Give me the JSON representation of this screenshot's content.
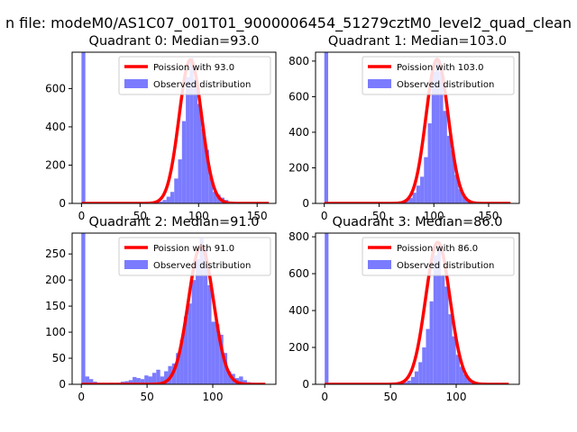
{
  "figure": {
    "suptitle": "n file: modeM0/AS1C07_001T01_9000006454_51279cztM0_level2_quad_clean"
  },
  "chart_data": [
    {
      "type": "bar",
      "title": "Quadrant 0: Median=93.0",
      "bin_width": 3.3,
      "xlim": [
        -8,
        166
      ],
      "ylim": [
        0,
        790
      ],
      "xticks": [
        0,
        50,
        100,
        150
      ],
      "yticks": [
        0,
        200,
        400,
        600
      ],
      "fit": {
        "label": "Poission with 93.0",
        "mean": 93.0,
        "peak": 750,
        "xrange": [
          0,
          160
        ],
        "color": "#ff0000"
      },
      "hist_label": "Observed distribution",
      "hist_color": "#7b7bff",
      "bins": [
        [
          0,
          790
        ],
        [
          56.1,
          3
        ],
        [
          59.4,
          4
        ],
        [
          62.7,
          6
        ],
        [
          66,
          10
        ],
        [
          69.3,
          18
        ],
        [
          72.6,
          35
        ],
        [
          75.9,
          60
        ],
        [
          79.2,
          130
        ],
        [
          82.5,
          230
        ],
        [
          85.8,
          430
        ],
        [
          89.1,
          660
        ],
        [
          92.4,
          760
        ],
        [
          95.7,
          650
        ],
        [
          99,
          520
        ],
        [
          102.3,
          390
        ],
        [
          105.6,
          280
        ],
        [
          108.9,
          140
        ],
        [
          112.2,
          60
        ],
        [
          115.5,
          45
        ],
        [
          118.8,
          30
        ],
        [
          122.1,
          18
        ],
        [
          125.4,
          10
        ],
        [
          128.7,
          6
        ],
        [
          132,
          3
        ],
        [
          138.6,
          2
        ],
        [
          145.2,
          1
        ]
      ]
    },
    {
      "type": "bar",
      "title": "Quadrant 1: Median=103.0",
      "bin_width": 3.5,
      "xlim": [
        -8,
        178
      ],
      "ylim": [
        0,
        850
      ],
      "xticks": [
        0,
        50,
        100,
        150
      ],
      "yticks": [
        0,
        200,
        400,
        600,
        800
      ],
      "fit": {
        "label": "Poission with 103.0",
        "mean": 103.0,
        "peak": 810,
        "xrange": [
          0,
          170
        ],
        "color": "#ff0000"
      },
      "hist_label": "Observed distribution",
      "hist_color": "#7b7bff",
      "bins": [
        [
          0,
          850
        ],
        [
          59.5,
          2
        ],
        [
          63,
          3
        ],
        [
          66.5,
          5
        ],
        [
          70,
          10
        ],
        [
          73.5,
          18
        ],
        [
          77,
          30
        ],
        [
          80.5,
          60
        ],
        [
          84,
          100
        ],
        [
          87.5,
          150
        ],
        [
          91,
          260
        ],
        [
          94.5,
          450
        ],
        [
          98,
          740
        ],
        [
          101.5,
          800
        ],
        [
          105,
          740
        ],
        [
          108.5,
          520
        ],
        [
          112,
          380
        ],
        [
          115.5,
          300
        ],
        [
          119,
          160
        ],
        [
          122.5,
          80
        ],
        [
          126,
          40
        ],
        [
          129.5,
          20
        ],
        [
          133,
          10
        ],
        [
          136.5,
          5
        ],
        [
          140,
          3
        ],
        [
          147,
          1
        ]
      ]
    },
    {
      "type": "bar",
      "title": "Quadrant 2: Median=91.0",
      "bin_width": 3.0,
      "xlim": [
        -7,
        148
      ],
      "ylim": [
        0,
        290
      ],
      "xticks": [
        0,
        50,
        100
      ],
      "yticks": [
        0,
        50,
        100,
        150,
        200,
        250
      ],
      "fit": {
        "label": "Poission with 91.0",
        "mean": 91.0,
        "peak": 265,
        "xrange": [
          0,
          140
        ],
        "color": "#ff0000"
      },
      "hist_label": "Observed distribution",
      "hist_color": "#7b7bff",
      "bins": [
        [
          0,
          290
        ],
        [
          3,
          15
        ],
        [
          6,
          10
        ],
        [
          9,
          5
        ],
        [
          12,
          3
        ],
        [
          15,
          2
        ],
        [
          18,
          2
        ],
        [
          21,
          3
        ],
        [
          24,
          2
        ],
        [
          27,
          3
        ],
        [
          30,
          5
        ],
        [
          33,
          6
        ],
        [
          36,
          8
        ],
        [
          39,
          14
        ],
        [
          42,
          12
        ],
        [
          45,
          10
        ],
        [
          48,
          17
        ],
        [
          51,
          15
        ],
        [
          54,
          22
        ],
        [
          57,
          28
        ],
        [
          60,
          15
        ],
        [
          63,
          25
        ],
        [
          66,
          35
        ],
        [
          69,
          40
        ],
        [
          72,
          60
        ],
        [
          75,
          85
        ],
        [
          78,
          130
        ],
        [
          81,
          155
        ],
        [
          84,
          200
        ],
        [
          87,
          240
        ],
        [
          90,
          280
        ],
        [
          93,
          260
        ],
        [
          96,
          190
        ],
        [
          99,
          120
        ],
        [
          102,
          115
        ],
        [
          105,
          95
        ],
        [
          108,
          60
        ],
        [
          111,
          25
        ],
        [
          114,
          20
        ],
        [
          117,
          12
        ],
        [
          120,
          15
        ],
        [
          123,
          8
        ],
        [
          126,
          4
        ],
        [
          129,
          3
        ],
        [
          132,
          2
        ],
        [
          135,
          1
        ]
      ]
    },
    {
      "type": "bar",
      "title": "Quadrant 3: Median=86.0",
      "bin_width": 2.85,
      "xlim": [
        -7,
        148
      ],
      "ylim": [
        0,
        820
      ],
      "xticks": [
        0,
        50,
        100
      ],
      "yticks": [
        0,
        200,
        400,
        600,
        800
      ],
      "fit": {
        "label": "Poission with 86.0",
        "mean": 86.0,
        "peak": 770,
        "xrange": [
          0,
          140
        ],
        "color": "#ff0000"
      },
      "hist_label": "Observed distribution",
      "hist_color": "#7b7bff",
      "bins": [
        [
          0,
          820
        ],
        [
          51.3,
          3
        ],
        [
          54.2,
          4
        ],
        [
          57,
          8
        ],
        [
          59.9,
          12
        ],
        [
          62.7,
          20
        ],
        [
          65.6,
          40
        ],
        [
          68.4,
          70
        ],
        [
          71.3,
          120
        ],
        [
          74.1,
          200
        ],
        [
          77,
          300
        ],
        [
          79.8,
          450
        ],
        [
          82.7,
          700
        ],
        [
          85.5,
          750
        ],
        [
          88.4,
          590
        ],
        [
          91.2,
          530
        ],
        [
          94.1,
          380
        ],
        [
          96.9,
          260
        ],
        [
          99.8,
          160
        ],
        [
          102.6,
          95
        ],
        [
          105.5,
          55
        ],
        [
          108.3,
          30
        ],
        [
          111.2,
          18
        ],
        [
          114,
          10
        ],
        [
          116.9,
          6
        ],
        [
          119.7,
          3
        ],
        [
          125.4,
          1
        ]
      ]
    }
  ]
}
